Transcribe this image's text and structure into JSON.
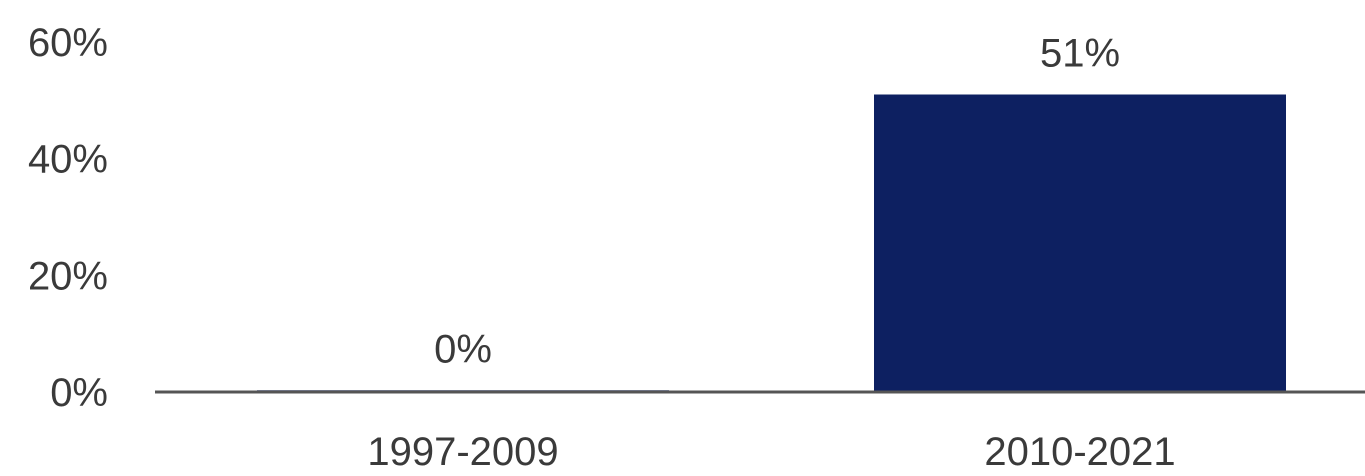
{
  "chart_data": {
    "type": "bar",
    "categories": [
      "1997-2009",
      "2010-2021"
    ],
    "values": [
      0.3,
      51
    ],
    "data_labels": [
      "0%",
      "51%"
    ],
    "ylim": [
      0,
      60
    ],
    "yticks": [
      0,
      20,
      40,
      60
    ],
    "ytick_labels": [
      "0%",
      "20%",
      "40%",
      "60%"
    ],
    "title": "",
    "xlabel": "",
    "ylabel": "",
    "grid": false,
    "bar_color": "#0d2061",
    "axis_color": "#555555"
  }
}
